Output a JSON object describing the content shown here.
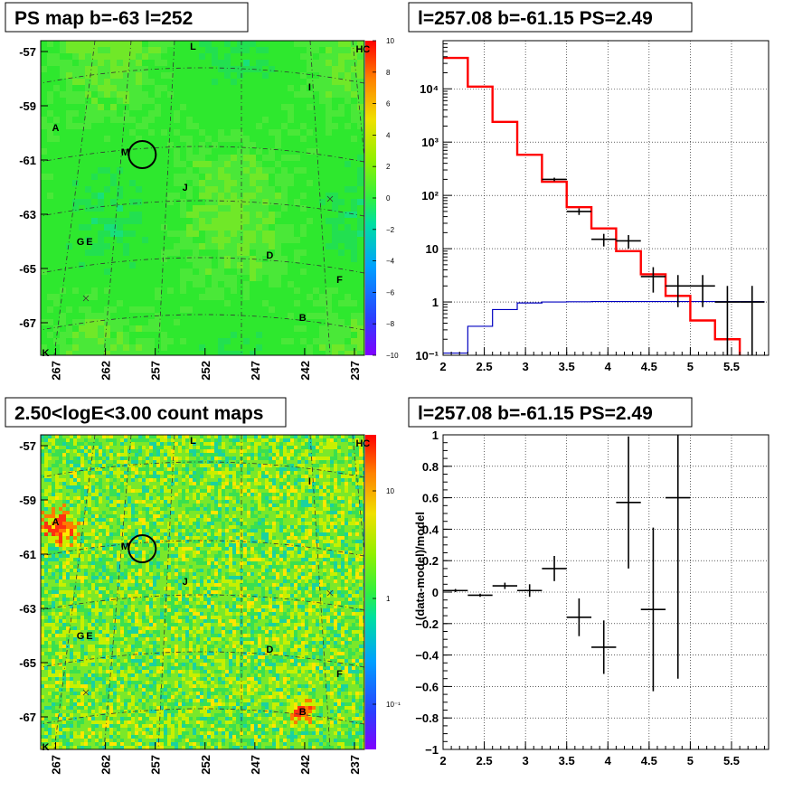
{
  "colors": {
    "model": "#ff0000",
    "ratio": "#0000c0",
    "data": "#000000"
  },
  "panels": {
    "map1": {
      "title": "PS map b=-63 l=252",
      "x_ticks": [
        "267",
        "262",
        "257",
        "252",
        "247",
        "242",
        "237"
      ],
      "y_ticks": [
        "-57",
        "-59",
        "-61",
        "-63",
        "-65",
        "-67"
      ],
      "colorbar": [
        "10",
        "8",
        "6",
        "4",
        "2",
        "0",
        "−2",
        "−4",
        "−6",
        "−8",
        "−10"
      ],
      "labels": {
        "L": "L",
        "H": "H",
        "C": "C",
        "I": "I",
        "A": "A",
        "M": "M",
        "J": "J",
        "G": "G",
        "E": "E",
        "D": "D",
        "F": "F",
        "B": "B",
        "K": "K"
      }
    },
    "map2": {
      "title": "2.50<logE<3.00 count maps",
      "x_ticks": [
        "267",
        "262",
        "257",
        "252",
        "247",
        "242",
        "237"
      ],
      "y_ticks": [
        "-57",
        "-59",
        "-61",
        "-63",
        "-65",
        "-67"
      ],
      "colorbar": [
        "10",
        "1",
        "10⁻¹"
      ],
      "labels": {
        "L": "L",
        "H": "H",
        "C": "C",
        "I": "I",
        "A": "A",
        "M": "M",
        "J": "J",
        "G": "G",
        "E": "E",
        "D": "D",
        "F": "F",
        "B": "B",
        "K": "K"
      }
    },
    "spectrum": {
      "title": "l=257.08 b=-61.15 PS=2.49",
      "x_ticks": [
        "2",
        "2.5",
        "3",
        "3.5",
        "4",
        "4.5",
        "5",
        "5.5"
      ],
      "y_ticks": [
        "10⁻¹",
        "1",
        "10",
        "10²",
        "10³",
        "10⁴"
      ]
    },
    "residual": {
      "title": "l=257.08 b=-61.15 PS=2.49",
      "ylabel": "(data-model)/model",
      "x_ticks": [
        "2",
        "2.5",
        "3",
        "3.5",
        "4",
        "4.5",
        "5",
        "5.5"
      ],
      "y_ticks": [
        "1",
        "0.8",
        "0.6",
        "0.4",
        "0.2",
        "0",
        "−0.2",
        "−0.4",
        "−0.6",
        "−0.8",
        "−1"
      ]
    }
  },
  "chart_data": [
    {
      "type": "heatmap",
      "title": "PS map b=-63 l=252",
      "xlim": [
        268.5,
        236
      ],
      "ylim": [
        -68.2,
        -56.6
      ],
      "colorbar_range": [
        -10,
        10
      ],
      "circle": {
        "l": 258.3,
        "b": -60.8
      },
      "sources": [
        {
          "name": "L",
          "l": 253.2,
          "b": -56.8
        },
        {
          "name": "H",
          "l": 236.5,
          "b": -56.9
        },
        {
          "name": "C",
          "l": 235.8,
          "b": -56.9
        },
        {
          "name": "I",
          "l": 241.5,
          "b": -58.3
        },
        {
          "name": "A",
          "l": 267,
          "b": -59.8
        },
        {
          "name": "M",
          "l": 260,
          "b": -60.7
        },
        {
          "name": "J",
          "l": 254,
          "b": -62.0
        },
        {
          "name": "G",
          "l": 264.5,
          "b": -64.0
        },
        {
          "name": "E",
          "l": 263.6,
          "b": -64.0
        },
        {
          "name": "D",
          "l": 245.5,
          "b": -64.5
        },
        {
          "name": "F",
          "l": 238.5,
          "b": -65.4
        },
        {
          "name": "B",
          "l": 242.2,
          "b": -66.8
        },
        {
          "name": "K",
          "l": 268,
          "b": -68.1
        }
      ]
    },
    {
      "type": "heatmap",
      "title": "2.50<logE<3.00 count maps",
      "xlim": [
        268.5,
        236
      ],
      "ylim": [
        -68.2,
        -56.6
      ],
      "colorbar_range": [
        0.05,
        40
      ],
      "circle": {
        "l": 258.3,
        "b": -60.8
      }
    },
    {
      "type": "line",
      "title": "l=257.08 b=-61.15 PS=2.49",
      "xlim": [
        2,
        5.95
      ],
      "ylim": [
        0.1,
        80000
      ],
      "yscale": "log",
      "model_steps": {
        "edges": [
          2,
          2.3,
          2.6,
          2.9,
          3.2,
          3.5,
          3.8,
          4.1,
          4.4,
          4.7,
          5.0,
          5.3,
          5.6,
          5.9
        ],
        "values": [
          38000,
          11000,
          2400,
          580,
          180,
          60,
          24,
          9,
          3.3,
          1.3,
          0.45,
          0.2,
          0.09
        ]
      },
      "ratio_steps": {
        "edges": [
          2,
          2.3,
          2.6,
          2.9,
          3.2,
          3.5,
          3.8,
          4.1,
          4.4,
          4.7,
          5.0,
          5.3,
          5.6,
          5.9
        ],
        "values": [
          0.11,
          0.35,
          0.72,
          0.96,
          1.0,
          1.01,
          1.02,
          1.02,
          1.02,
          1.02,
          1.02,
          1.02,
          1.02
        ]
      },
      "data_points": [
        {
          "x": 3.35,
          "y": 200,
          "xerr": 0.15,
          "ylo": 185,
          "yhi": 215
        },
        {
          "x": 3.65,
          "y": 50,
          "xerr": 0.15,
          "ylo": 43,
          "yhi": 57
        },
        {
          "x": 3.95,
          "y": 15,
          "xerr": 0.15,
          "ylo": 11,
          "yhi": 19
        },
        {
          "x": 4.25,
          "y": 14,
          "xerr": 0.15,
          "ylo": 10,
          "yhi": 18
        },
        {
          "x": 4.55,
          "y": 3,
          "xerr": 0.15,
          "ylo": 1.5,
          "yhi": 4.5
        },
        {
          "x": 4.85,
          "y": 2,
          "xerr": 0.15,
          "ylo": 0.8,
          "yhi": 3.2
        },
        {
          "x": 5.15,
          "y": 2,
          "xerr": 0.15,
          "ylo": 0.8,
          "yhi": 3.2
        },
        {
          "x": 5.45,
          "y": 1,
          "xerr": 0.15,
          "ylo": 0.09,
          "yhi": 2.0
        },
        {
          "x": 5.75,
          "y": 1,
          "xerr": 0.15,
          "ylo": 0.09,
          "yhi": 2.0
        }
      ]
    },
    {
      "type": "scatter",
      "title": "l=257.08 b=-61.15 PS=2.49",
      "ylabel": "(data-model)/model",
      "xlim": [
        2,
        5.95
      ],
      "ylim": [
        -1,
        1
      ],
      "points": [
        {
          "x": 2.15,
          "y": 0.01,
          "xerr": 0.15,
          "yerr": 0.01
        },
        {
          "x": 2.45,
          "y": -0.02,
          "xerr": 0.15,
          "yerr": 0.01
        },
        {
          "x": 2.75,
          "y": 0.04,
          "xerr": 0.15,
          "yerr": 0.02
        },
        {
          "x": 3.05,
          "y": 0.01,
          "xerr": 0.15,
          "yerr": 0.04
        },
        {
          "x": 3.35,
          "y": 0.15,
          "xerr": 0.15,
          "yerr": 0.08
        },
        {
          "x": 3.65,
          "y": -0.16,
          "xerr": 0.15,
          "yerr": 0.12
        },
        {
          "x": 3.95,
          "y": -0.35,
          "xerr": 0.15,
          "yerr": 0.17
        },
        {
          "x": 4.25,
          "y": 0.57,
          "xerr": 0.15,
          "yerr": 0.42
        },
        {
          "x": 4.55,
          "y": -0.11,
          "xerr": 0.15,
          "yerr": 0.52
        },
        {
          "x": 4.85,
          "y": 0.6,
          "xerr": 0.15,
          "yerr": 1.15
        }
      ]
    }
  ]
}
